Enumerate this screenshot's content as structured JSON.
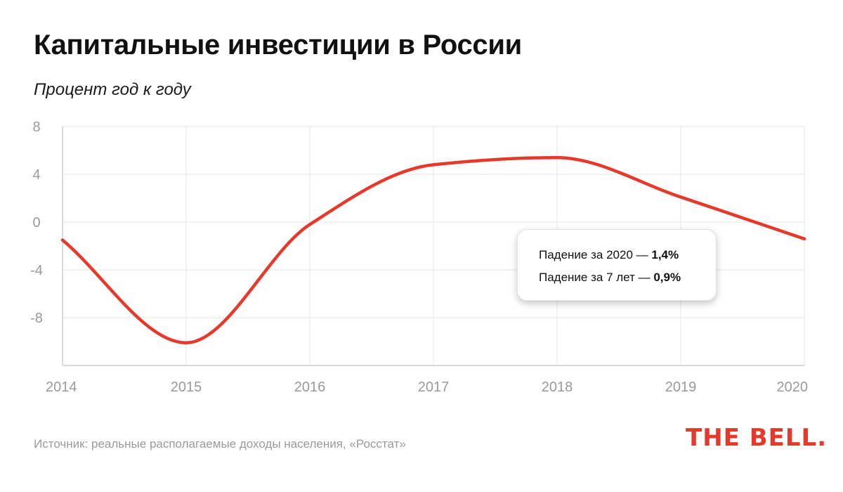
{
  "header": {
    "title": "Капитальные инвестиции в России",
    "subtitle": "Процент год к году"
  },
  "chart_data": {
    "type": "line",
    "title": "Капитальные инвестиции в России",
    "subtitle": "Процент год к году",
    "xlabel": "",
    "ylabel": "",
    "x_ticks": [
      "2014",
      "2015",
      "2016",
      "2017",
      "2018",
      "2019",
      "2020"
    ],
    "y_ticks": [
      "8",
      "4",
      "0",
      "-4",
      "-8"
    ],
    "xlim": [
      2014,
      2020
    ],
    "ylim": [
      -12,
      8
    ],
    "grid": true,
    "series": [
      {
        "color": "#e53a2b",
        "points": [
          {
            "x": 2014.0,
            "y": -1.5
          },
          {
            "x": 2015.0,
            "y": -10.1
          },
          {
            "x": 2016.0,
            "y": -0.2
          },
          {
            "x": 2017.0,
            "y": 4.8
          },
          {
            "x": 2018.0,
            "y": 5.4
          },
          {
            "x": 2019.0,
            "y": 2.1
          },
          {
            "x": 2020.0,
            "y": -1.4
          }
        ]
      }
    ],
    "annotations": [
      {
        "text": "Падение за 2020 — ",
        "value": "1,4%"
      },
      {
        "text": "Падение за 7 лет — ",
        "value": "0,9%"
      }
    ]
  },
  "footer": {
    "source": "Источник: реальные располагаемые доходы населения, «Росстат»",
    "logo_text": "THE BELL",
    "logo_dot": "."
  },
  "colors": {
    "line": "#e53a2b",
    "grid": "#e6e6e6",
    "axis_text": "#9a9a9a",
    "logo": "#e53a2b"
  }
}
